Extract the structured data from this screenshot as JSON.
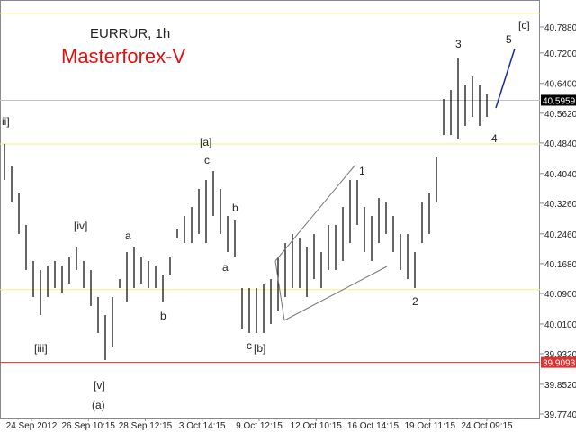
{
  "chart_data": {
    "type": "ohlc",
    "title": "EURRUR, 1h",
    "subtitle": "Masterforex-V",
    "color": "#000000",
    "high": [
      40.4814,
      40.4225,
      40.3517,
      40.2692,
      40.1749,
      40.1513,
      40.1631,
      40.1749,
      40.1631,
      40.1866,
      40.2102,
      40.1749,
      40.1513,
      40.0805,
      40.0334,
      40.0805,
      40.1277,
      40.1984,
      40.2102,
      40.1866,
      40.1749,
      40.1631,
      40.1395,
      40.1866,
      40.2574,
      40.2928,
      40.3163,
      40.3635,
      40.3871,
      40.4107,
      40.3635,
      40.2928,
      40.281,
      40.1041,
      40.1041,
      40.1041,
      40.1159,
      40.1277,
      40.1866,
      40.222,
      40.2456,
      40.2338,
      40.2102,
      40.2456,
      40.1984,
      40.2692,
      40.2692,
      40.3163,
      40.3871,
      40.3871,
      40.3163,
      40.2928,
      40.3399,
      40.3281,
      40.2928,
      40.2456,
      40.2456,
      40.1984,
      40.3281,
      40.3517,
      40.446,
      40.5993,
      40.6229,
      40.7054,
      40.6347,
      40.6583,
      40.6347,
      40.6111
    ],
    "low": [
      40.3871,
      40.3281,
      40.2456,
      40.1513,
      40.0805,
      40.0334,
      40.0805,
      40.1041,
      40.0923,
      40.1159,
      40.1513,
      40.1041,
      40.0569,
      39.9862,
      39.9155,
      39.9508,
      40.1041,
      40.0687,
      40.1041,
      40.1159,
      40.1041,
      40.1041,
      40.0687,
      40.1395,
      40.2338,
      40.222,
      40.222,
      40.2456,
      40.222,
      40.2928,
      40.2456,
      40.1984,
      40.1866,
      39.998,
      39.9862,
      39.9862,
      39.9862,
      40.0098,
      40.0452,
      40.0805,
      40.1041,
      40.1041,
      40.0805,
      40.1277,
      40.1041,
      40.1513,
      40.1513,
      40.1749,
      40.222,
      40.2692,
      40.1984,
      40.1749,
      40.222,
      40.2456,
      40.1984,
      40.1513,
      40.1277,
      40.1041,
      40.222,
      40.2456,
      40.3281,
      40.505,
      40.505,
      40.4932,
      40.5286,
      40.5521,
      40.5286,
      40.5521
    ],
    "x_labels": [
      "24 Sep 2012",
      "26 Sep 10:15",
      "28 Sep 12:15",
      "3 Oct 14:15",
      "9 Oct 12:15",
      "12 Oct 10:15",
      "16 Oct 14:15",
      "19 Oct 11:15",
      "24 Oct 09:15"
    ],
    "ylim": [
      39.7622,
      40.8587
    ],
    "yticks": [
      {
        "value": 40.788,
        "label": "40.7880"
      },
      {
        "value": 40.72,
        "label": "40.7200"
      },
      {
        "value": 40.64,
        "label": "40.6400"
      },
      {
        "value": 40.562,
        "label": "40.5620"
      },
      {
        "value": 40.484,
        "label": "40.4840"
      },
      {
        "value": 40.404,
        "label": "40.4040"
      },
      {
        "value": 40.326,
        "label": "40.3260"
      },
      {
        "value": 40.246,
        "label": "40.2460"
      },
      {
        "value": 40.168,
        "label": "40.1680"
      },
      {
        "value": 40.09,
        "label": "40.0900"
      },
      {
        "value": 40.01,
        "label": "40.0100"
      },
      {
        "value": 39.932,
        "label": "39.9320"
      },
      {
        "value": 39.852,
        "label": "39.8520"
      },
      {
        "value": 39.774,
        "label": "39.7740"
      }
    ],
    "levels": [
      {
        "value": 40.823,
        "color": "#f0f07a"
      },
      {
        "value": 40.4814,
        "color": "#f0f07a"
      },
      {
        "value": 40.1,
        "color": "#f0f07a"
      },
      {
        "value": 39.9093,
        "color": "#e03030"
      },
      {
        "value": 40.5959,
        "color": "#c0c0c0"
      }
    ],
    "price_labels": [
      {
        "value": 39.9093,
        "color": "#e03030"
      },
      {
        "value": 40.5959,
        "color": "#000000"
      }
    ],
    "annotations": [
      "[c]",
      "3",
      "5",
      "4",
      "[a]",
      "c",
      "b",
      "a",
      "[iv]",
      "a",
      "b",
      "[iii]",
      "[v]",
      "(a)",
      "ii]",
      "1",
      "2",
      "c",
      "[b]"
    ]
  }
}
